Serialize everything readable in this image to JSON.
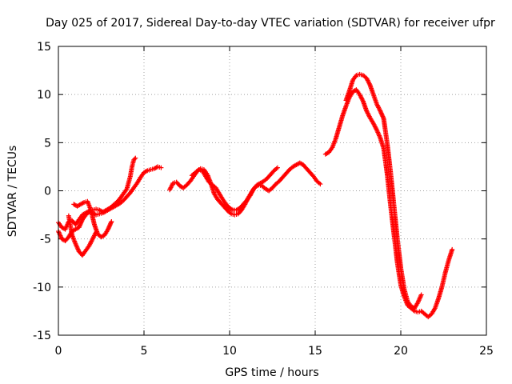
{
  "chart_data": {
    "type": "scatter",
    "title": "Day 025 of 2017, Sidereal Day-to-day VTEC variation (SDTVAR) for receiver ufpr",
    "xlabel": "GPS time / hours",
    "ylabel": "SDTVAR / TECUs",
    "xlim": [
      0,
      25
    ],
    "ylim": [
      -15,
      15
    ],
    "x_ticks": [
      0,
      5,
      10,
      15,
      20,
      25
    ],
    "y_ticks": [
      -15,
      -10,
      -5,
      0,
      5,
      10,
      15
    ],
    "x_tick_labels": [
      "0",
      "5",
      "10",
      "15",
      "20",
      "25"
    ],
    "y_tick_labels": [
      "-15",
      "-10",
      "-5",
      "0",
      "5",
      "10",
      "15"
    ],
    "grid": true,
    "marker": "plus",
    "series_color": "#ff0000",
    "series": [
      {
        "x": [
          0.0,
          0.2,
          0.4,
          0.5,
          0.6,
          0.8,
          1.0,
          1.2,
          1.4,
          1.6,
          1.8,
          2.0,
          2.2,
          2.4,
          2.6,
          2.8,
          3.0,
          3.2,
          3.4,
          3.6,
          3.8,
          4.0,
          4.2,
          4.3,
          4.4,
          4.5
        ],
        "y": [
          -3.3,
          -3.8,
          -4.0,
          -3.6,
          -3.2,
          -3.1,
          -3.5,
          -3.0,
          -2.5,
          -2.3,
          -2.1,
          -2.0,
          -1.9,
          -2.0,
          -2.2,
          -2.0,
          -1.8,
          -1.5,
          -1.2,
          -0.8,
          -0.3,
          0.2,
          1.5,
          2.5,
          3.2,
          3.4
        ]
      },
      {
        "x": [
          0.0,
          0.2,
          0.4,
          0.6,
          0.8,
          1.0,
          1.2,
          1.4,
          1.6,
          1.8,
          2.0,
          2.2,
          2.4,
          2.6,
          2.8,
          3.0,
          3.2,
          3.4,
          3.6,
          3.8,
          4.0,
          4.2,
          4.4,
          4.6,
          4.8,
          5.0,
          5.2,
          5.4,
          5.6,
          5.8,
          6.0
        ],
        "y": [
          -4.2,
          -5.0,
          -5.2,
          -4.8,
          -4.2,
          -4.0,
          -3.8,
          -3.0,
          -2.5,
          -2.2,
          -2.3,
          -2.5,
          -2.4,
          -2.3,
          -2.1,
          -1.9,
          -1.7,
          -1.5,
          -1.3,
          -1.0,
          -0.6,
          -0.2,
          0.3,
          0.8,
          1.4,
          1.9,
          2.1,
          2.2,
          2.3,
          2.5,
          2.4
        ]
      },
      {
        "x": [
          0.6,
          0.8,
          1.0,
          1.2,
          1.4,
          1.6,
          1.8,
          2.0,
          2.2
        ],
        "y": [
          -2.6,
          -4.6,
          -5.5,
          -6.3,
          -6.7,
          -6.2,
          -5.7,
          -5.0,
          -4.3
        ]
      },
      {
        "x": [
          0.9,
          1.1,
          1.3,
          1.5,
          1.7,
          1.9,
          2.1,
          2.3,
          2.5,
          2.7,
          2.9,
          3.1
        ],
        "y": [
          -1.4,
          -1.6,
          -1.4,
          -1.2,
          -1.1,
          -2.0,
          -3.5,
          -4.5,
          -4.8,
          -4.6,
          -4.0,
          -3.2
        ]
      },
      {
        "x": [
          6.5,
          6.7,
          6.9,
          7.1,
          7.3,
          7.5,
          7.7,
          7.9,
          8.1,
          8.3,
          8.5,
          8.7,
          8.9,
          9.1,
          9.3,
          9.5,
          9.7,
          9.9,
          10.1,
          10.3,
          10.5,
          10.7,
          10.9,
          11.1,
          11.3,
          11.5,
          11.7,
          11.9,
          12.1,
          12.3,
          12.5,
          12.7,
          12.9,
          13.1,
          13.3,
          13.5,
          13.7,
          13.9,
          14.1,
          14.3,
          14.5,
          14.7,
          14.9,
          15.1,
          15.3
        ],
        "y": [
          0.1,
          0.8,
          0.9,
          0.5,
          0.3,
          0.6,
          1.0,
          1.5,
          2.0,
          2.3,
          2.2,
          1.7,
          0.8,
          -0.3,
          -0.9,
          -1.3,
          -1.7,
          -2.1,
          -2.4,
          -2.5,
          -2.4,
          -2.0,
          -1.4,
          -0.7,
          -0.1,
          0.4,
          0.6,
          0.5,
          0.2,
          0.0,
          0.3,
          0.7,
          1.0,
          1.4,
          1.8,
          2.2,
          2.5,
          2.7,
          2.9,
          2.7,
          2.3,
          1.9,
          1.5,
          1.0,
          0.7
        ]
      },
      {
        "x": [
          7.8,
          8.0,
          8.2,
          8.4,
          8.6,
          8.8,
          9.0,
          9.2,
          9.4,
          9.6,
          9.8,
          10.0,
          10.2,
          10.4,
          10.6,
          10.8,
          11.0,
          11.2,
          11.4,
          11.6,
          11.8,
          12.0,
          12.2,
          12.4,
          12.6,
          12.8
        ],
        "y": [
          1.6,
          1.9,
          2.2,
          2.1,
          1.5,
          0.9,
          0.6,
          0.3,
          -0.3,
          -0.9,
          -1.4,
          -1.8,
          -2.0,
          -2.0,
          -1.8,
          -1.4,
          -1.0,
          -0.5,
          0.2,
          0.6,
          0.8,
          1.0,
          1.3,
          1.7,
          2.1,
          2.4
        ]
      },
      {
        "x": [
          15.6,
          15.8,
          16.0,
          16.2,
          16.4,
          16.6,
          16.8,
          17.0,
          17.2,
          17.4,
          17.6,
          17.8,
          18.0,
          18.2,
          18.4,
          18.6,
          18.8,
          19.0,
          19.2,
          19.4,
          19.6,
          19.8,
          20.0,
          20.2,
          20.4,
          20.6,
          20.8,
          21.0,
          21.2,
          21.4,
          21.6,
          21.8,
          22.0,
          22.2,
          22.4,
          22.6,
          22.8,
          23.0
        ],
        "y": [
          3.8,
          4.0,
          4.5,
          5.4,
          6.6,
          7.8,
          8.8,
          9.7,
          10.3,
          10.5,
          10.0,
          9.3,
          8.3,
          7.6,
          7.0,
          6.3,
          5.5,
          4.4,
          1.8,
          -1.5,
          -4.5,
          -7.5,
          -9.8,
          -11.0,
          -11.9,
          -12.2,
          -12.5,
          -12.6,
          -12.5,
          -12.8,
          -13.1,
          -12.8,
          -12.2,
          -11.2,
          -10.0,
          -8.5,
          -7.2,
          -6.1
        ]
      },
      {
        "x": [
          16.8,
          17.0,
          17.2,
          17.4,
          17.6,
          17.8,
          18.0,
          18.2,
          18.4,
          18.6,
          18.8,
          19.0,
          19.2,
          19.4,
          19.6,
          19.8,
          20.0,
          20.2,
          20.4,
          20.6,
          20.8,
          21.0,
          21.2
        ],
        "y": [
          9.4,
          10.4,
          11.5,
          12.0,
          12.1,
          12.0,
          11.7,
          11.0,
          10.0,
          9.0,
          8.3,
          7.5,
          5.0,
          2.0,
          -1.5,
          -5.0,
          -8.0,
          -10.2,
          -11.5,
          -12.0,
          -12.2,
          -11.6,
          -10.8
        ]
      }
    ]
  }
}
